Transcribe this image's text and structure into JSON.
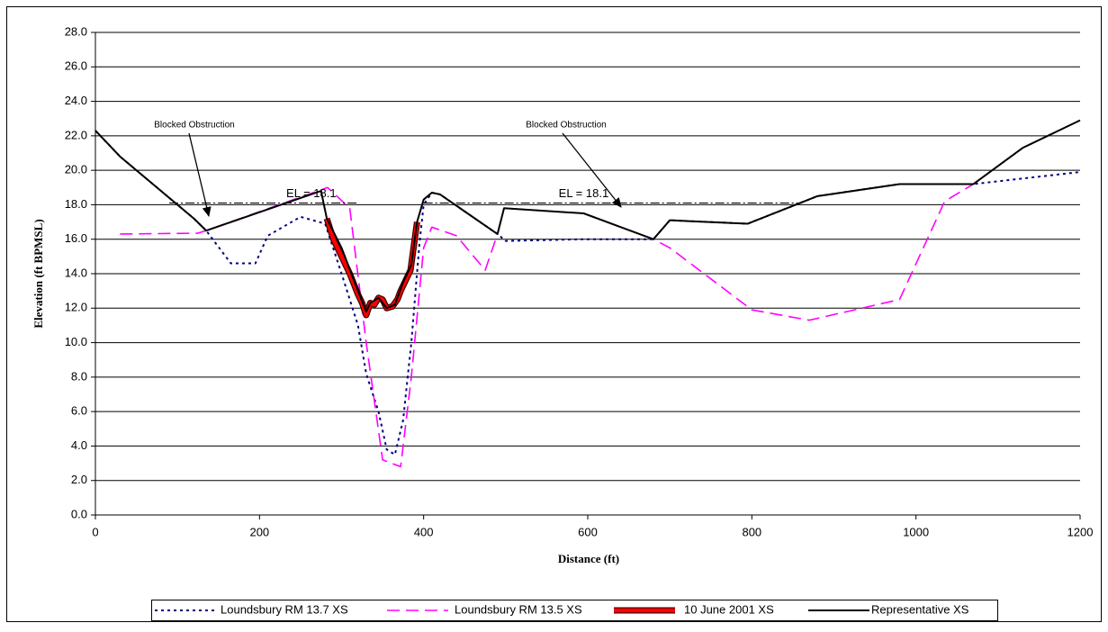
{
  "chart_data": {
    "type": "line",
    "xlabel": "Distance (ft)",
    "ylabel": "Elevation (ft BPMSL)",
    "xlim": [
      0,
      1200
    ],
    "xticks": [
      0,
      200,
      400,
      600,
      800,
      1000,
      1200
    ],
    "ylim": [
      0,
      28
    ],
    "yticks": [
      {
        "value": 0,
        "label": "0.0"
      },
      {
        "value": 2,
        "label": "2.0"
      },
      {
        "value": 4,
        "label": "4.0"
      },
      {
        "value": 6,
        "label": "6.0"
      },
      {
        "value": 8,
        "label": "8.0"
      },
      {
        "value": 10,
        "label": "10.0"
      },
      {
        "value": 12,
        "label": "12.0"
      },
      {
        "value": 14,
        "label": "14.0"
      },
      {
        "value": 16,
        "label": "16.0"
      },
      {
        "value": 18,
        "label": "18.0"
      },
      {
        "value": 20,
        "label": "20.0"
      },
      {
        "value": 22,
        "label": "22.0"
      },
      {
        "value": 24,
        "label": "24.0"
      },
      {
        "value": 26,
        "label": "26.0"
      },
      {
        "value": 28,
        "label": "28.0"
      }
    ],
    "grid": true,
    "legend": "bottom",
    "series": [
      {
        "name": "Loundsbury RM 13.7 XS",
        "color": "#000080",
        "style": "dotted",
        "x": [
          0,
          30,
          120,
          135,
          165,
          195,
          210,
          250,
          280,
          300,
          320,
          330,
          345,
          355,
          365,
          375,
          385,
          395,
          400,
          410,
          420,
          490,
          500,
          595,
          680,
          700,
          795,
          880,
          980,
          1070,
          1200
        ],
        "values": [
          22.3,
          20.8,
          17.2,
          16.5,
          14.6,
          14.6,
          16.2,
          17.3,
          16.9,
          14.0,
          11.0,
          8.2,
          6.0,
          3.8,
          3.5,
          5.5,
          10.0,
          15.8,
          18.0,
          18.7,
          18.6,
          16.3,
          15.9,
          16.0,
          16.0,
          17.1,
          16.9,
          18.5,
          19.2,
          19.2,
          19.9
        ]
      },
      {
        "name": "Loundsbury RM 13.5 XS",
        "color": "#ff00ff",
        "style": "dashed",
        "x": [
          30,
          125,
          135,
          283,
          310,
          330,
          350,
          372,
          385,
          400,
          410,
          440,
          475,
          490,
          498,
          595,
          680,
          700,
          800,
          870,
          980,
          1035,
          1070,
          1130,
          1200
        ],
        "values": [
          16.3,
          16.35,
          16.5,
          19.0,
          17.8,
          10.0,
          3.2,
          2.8,
          8.0,
          15.5,
          16.7,
          16.2,
          14.2,
          16.3,
          17.8,
          17.5,
          16.0,
          15.5,
          11.9,
          11.3,
          12.5,
          18.2,
          19.2,
          21.3,
          22.9
        ]
      },
      {
        "name": "10 June 2001 XS",
        "color": "#ff0000",
        "style": "thick",
        "x": [
          282,
          290,
          300,
          310,
          320,
          325,
          330,
          335,
          340,
          345,
          350,
          355,
          362,
          368,
          372,
          378,
          384,
          392
        ],
        "values": [
          17.2,
          16.0,
          15.0,
          14.0,
          12.8,
          12.3,
          11.6,
          12.3,
          12.2,
          12.6,
          12.5,
          12.0,
          12.1,
          12.5,
          13.0,
          13.6,
          14.2,
          17.0
        ]
      },
      {
        "name": "Representative XS",
        "color": "#000000",
        "style": "solid",
        "x": [
          0,
          30,
          120,
          135,
          275,
          282,
          300,
          320,
          330,
          335,
          345,
          355,
          365,
          375,
          385,
          392,
          400,
          410,
          420,
          490,
          498,
          595,
          680,
          700,
          795,
          880,
          980,
          1070,
          1130,
          1200
        ],
        "values": [
          22.3,
          20.8,
          17.2,
          16.5,
          18.8,
          17.2,
          15.5,
          13.0,
          11.8,
          12.3,
          12.6,
          12.0,
          12.2,
          13.5,
          14.5,
          17.0,
          18.3,
          18.7,
          18.6,
          16.3,
          17.8,
          17.5,
          16.0,
          17.1,
          16.9,
          18.5,
          19.2,
          19.2,
          21.3,
          22.9
        ]
      }
    ],
    "reference_lines": [
      {
        "label": "EL = 18.1",
        "y": 18.1,
        "x": [
          90,
          320
        ]
      },
      {
        "label": "EL = 18.1",
        "y": 18.1,
        "x": [
          400,
          860
        ]
      }
    ],
    "annotations": [
      "Blocked Obstruction",
      "Blocked Obstruction"
    ]
  }
}
